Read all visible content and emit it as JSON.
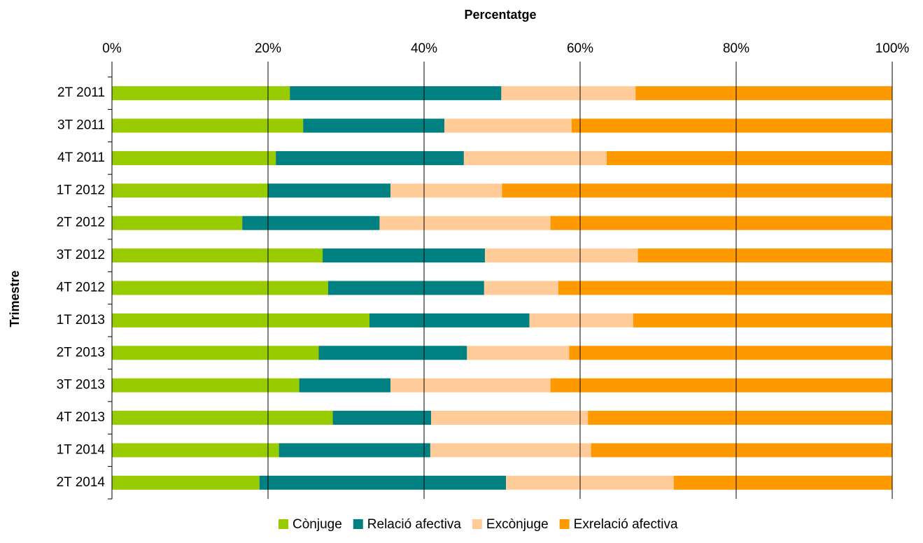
{
  "chart_data": {
    "type": "bar",
    "orientation": "horizontal",
    "stacked": true,
    "title": "Percentatge",
    "y_label": "Trimestre",
    "categories": [
      "2T 2011",
      "3T 2011",
      "4T 2011",
      "1T 2012",
      "2T 2012",
      "3T 2012",
      "4T 2012",
      "1T 2013",
      "2T 2013",
      "3T 2013",
      "4T 2013",
      "1T 2014",
      "2T 2014"
    ],
    "series": [
      {
        "name": "Cònjuge",
        "color": "#99cc00",
        "values": [
          22.8,
          24.5,
          21.0,
          20.0,
          16.7,
          27.0,
          27.7,
          33.0,
          26.5,
          24.0,
          28.3,
          21.4,
          18.9
        ]
      },
      {
        "name": "Relació afectiva",
        "color": "#008080",
        "values": [
          27.1,
          18.1,
          24.1,
          15.7,
          17.6,
          20.8,
          20.0,
          20.5,
          19.0,
          11.7,
          12.6,
          19.4,
          31.6
        ]
      },
      {
        "name": "Excònjuge",
        "color": "#ffcc99",
        "values": [
          17.2,
          16.3,
          18.3,
          14.3,
          21.9,
          19.6,
          9.5,
          13.3,
          13.1,
          20.5,
          20.1,
          20.6,
          21.5
        ]
      },
      {
        "name": "Exrelació afectiva",
        "color": "#ff9900",
        "values": [
          32.9,
          41.1,
          36.6,
          50.0,
          43.8,
          32.6,
          42.8,
          33.2,
          41.4,
          43.8,
          39.0,
          38.6,
          28.0
        ]
      }
    ],
    "xlim": [
      0,
      100
    ],
    "xticks": [
      {
        "value": 0,
        "label": "0%"
      },
      {
        "value": 20,
        "label": "20%"
      },
      {
        "value": 40,
        "label": "40%"
      },
      {
        "value": 60,
        "label": "60%"
      },
      {
        "value": 80,
        "label": "80%"
      },
      {
        "value": 100,
        "label": "100%"
      }
    ],
    "grid": true,
    "legend": "bottom"
  }
}
